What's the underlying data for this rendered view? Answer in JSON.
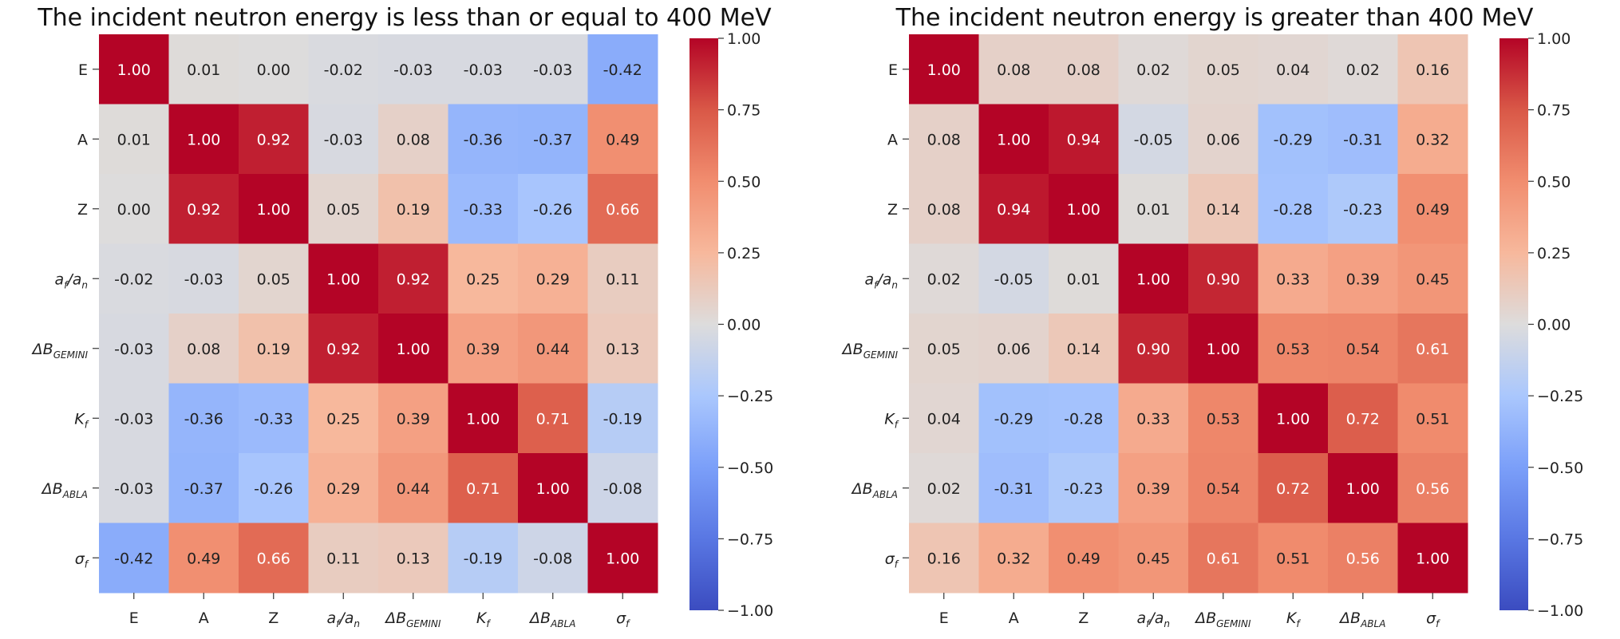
{
  "chart_data": [
    {
      "type": "heatmap",
      "title": "The incident neutron energy is less than or equal to 400 MeV",
      "labels": [
        {
          "base": "E",
          "sub": ""
        },
        {
          "base": "A",
          "sub": ""
        },
        {
          "base": "Z",
          "sub": ""
        },
        {
          "base": "a",
          "sub": "f",
          "suffix_base": "/a",
          "suffix_sub": "n"
        },
        {
          "base": "ΔB",
          "sub": "GEMINI"
        },
        {
          "base": "K",
          "sub": "f"
        },
        {
          "base": "ΔB",
          "sub": "ABLA"
        },
        {
          "base": "σ",
          "sub": "f"
        }
      ],
      "matrix": [
        [
          1.0,
          0.01,
          0.0,
          -0.02,
          -0.03,
          -0.03,
          -0.03,
          -0.42
        ],
        [
          0.01,
          1.0,
          0.92,
          -0.03,
          0.08,
          -0.36,
          -0.37,
          0.49
        ],
        [
          0.0,
          0.92,
          1.0,
          0.05,
          0.19,
          -0.33,
          -0.26,
          0.66
        ],
        [
          -0.02,
          -0.03,
          0.05,
          1.0,
          0.92,
          0.25,
          0.29,
          0.11
        ],
        [
          -0.03,
          0.08,
          0.19,
          0.92,
          1.0,
          0.39,
          0.44,
          0.13
        ],
        [
          -0.03,
          -0.36,
          -0.33,
          0.25,
          0.39,
          1.0,
          0.71,
          -0.19
        ],
        [
          -0.03,
          -0.37,
          -0.26,
          0.29,
          0.44,
          0.71,
          1.0,
          -0.08
        ],
        [
          -0.42,
          0.49,
          0.66,
          0.11,
          0.13,
          -0.19,
          -0.08,
          1.0
        ]
      ],
      "colorbar": {
        "range": [
          -1.0,
          1.0
        ],
        "ticks": [
          1.0,
          0.75,
          0.5,
          0.25,
          0.0,
          -0.25,
          -0.5,
          -0.75,
          -1.0
        ],
        "tick_labels": [
          "1.00",
          "0.75",
          "0.50",
          "0.25",
          "0.00",
          "−0.25",
          "−0.50",
          "−0.75",
          "−1.00"
        ],
        "colormap": "coolwarm",
        "colors": {
          "low": "#3b4cc0",
          "mid": "#dddcdc",
          "high": "#b40426"
        }
      }
    },
    {
      "type": "heatmap",
      "title": "The incident neutron energy is greater than 400 MeV",
      "labels": [
        {
          "base": "E",
          "sub": ""
        },
        {
          "base": "A",
          "sub": ""
        },
        {
          "base": "Z",
          "sub": ""
        },
        {
          "base": "a",
          "sub": "f",
          "suffix_base": "/a",
          "suffix_sub": "n"
        },
        {
          "base": "ΔB",
          "sub": "GEMINI"
        },
        {
          "base": "K",
          "sub": "f"
        },
        {
          "base": "ΔB",
          "sub": "ABLA"
        },
        {
          "base": "σ",
          "sub": "f"
        }
      ],
      "matrix": [
        [
          1.0,
          0.08,
          0.08,
          0.02,
          0.05,
          0.04,
          0.02,
          0.16
        ],
        [
          0.08,
          1.0,
          0.94,
          -0.05,
          0.06,
          -0.29,
          -0.31,
          0.32
        ],
        [
          0.08,
          0.94,
          1.0,
          0.01,
          0.14,
          -0.28,
          -0.23,
          0.49
        ],
        [
          0.02,
          -0.05,
          0.01,
          1.0,
          0.9,
          0.33,
          0.39,
          0.45
        ],
        [
          0.05,
          0.06,
          0.14,
          0.9,
          1.0,
          0.53,
          0.54,
          0.61
        ],
        [
          0.04,
          -0.29,
          -0.28,
          0.33,
          0.53,
          1.0,
          0.72,
          0.51
        ],
        [
          0.02,
          -0.31,
          -0.23,
          0.39,
          0.54,
          0.72,
          1.0,
          0.56
        ],
        [
          0.16,
          0.32,
          0.49,
          0.45,
          0.61,
          0.51,
          0.56,
          1.0
        ]
      ],
      "colorbar": {
        "range": [
          -1.0,
          1.0
        ],
        "ticks": [
          1.0,
          0.75,
          0.5,
          0.25,
          0.0,
          -0.25,
          -0.5,
          -0.75,
          -1.0
        ],
        "tick_labels": [
          "1.00",
          "0.75",
          "0.50",
          "0.25",
          "0.00",
          "−0.25",
          "−0.50",
          "−0.75",
          "−1.00"
        ],
        "colormap": "coolwarm",
        "colors": {
          "low": "#3b4cc0",
          "mid": "#dddcdc",
          "high": "#b40426"
        }
      }
    }
  ]
}
